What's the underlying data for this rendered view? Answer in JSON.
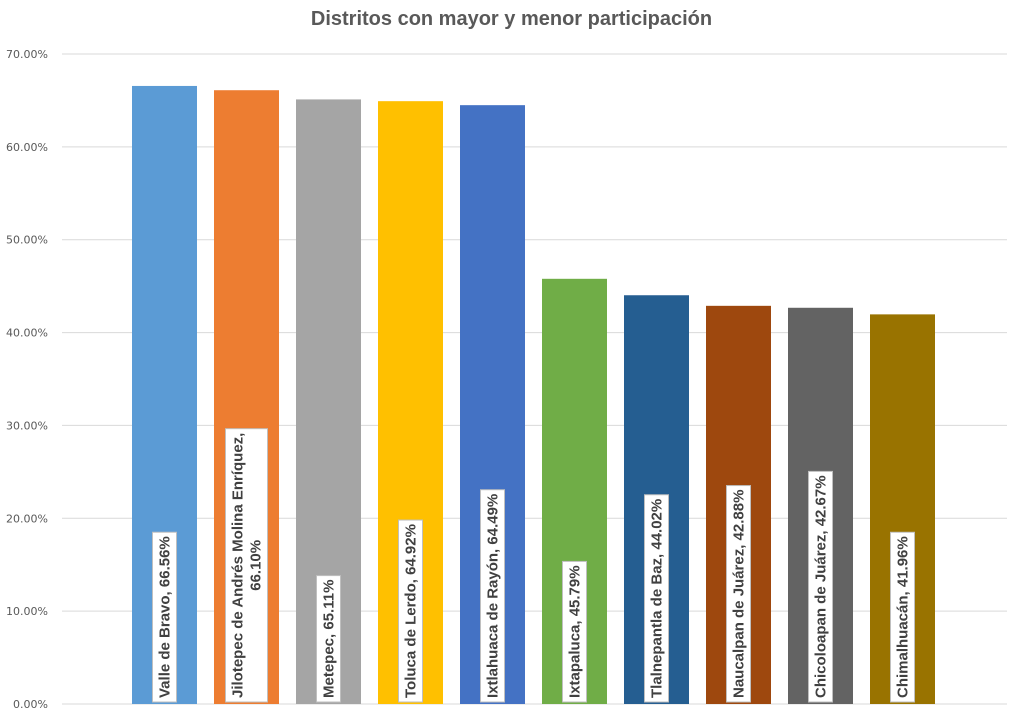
{
  "chart_data": {
    "type": "bar",
    "title": "Distritos con mayor y menor participación",
    "xlabel": "",
    "ylabel": "",
    "ylim": [
      0,
      70
    ],
    "yticks": [
      "0.00%",
      "10.00%",
      "20.00%",
      "30.00%",
      "40.00%",
      "50.00%",
      "60.00%",
      "70.00%"
    ],
    "grid": true,
    "legend": "none",
    "categories": [
      "Valle de Bravo",
      "Jilotepec de Andrés Molina Enríquez",
      "Metepec",
      "Toluca de Lerdo",
      "Ixtlahuaca de Rayón",
      "Ixtapaluca",
      "Tlalnepantla de Baz",
      "Naucalpan de Juárez",
      "Chicoloapan de Juárez",
      "Chimalhuacán"
    ],
    "values": [
      66.56,
      66.1,
      65.11,
      64.92,
      64.49,
      45.79,
      44.02,
      42.88,
      42.67,
      41.96
    ],
    "data_labels": [
      [
        "Valle de Bravo, 66.56%"
      ],
      [
        "Jilotepec de Andrés Molina Enríquez,",
        "66.10%"
      ],
      [
        "Metepec, 65.11%"
      ],
      [
        "Toluca de Lerdo, 64.92%"
      ],
      [
        "Ixtlahuaca de Rayón, 64.49%"
      ],
      [
        "Ixtapaluca, 45.79%"
      ],
      [
        "Tlalnepantla de Baz, 44.02%"
      ],
      [
        "Naucalpan de Juárez, 42.88%"
      ],
      [
        "Chicoloapan de Juárez, 42.67%"
      ],
      [
        "Chimalhuacán, 41.96%"
      ]
    ],
    "colors": [
      "#5b9bd5",
      "#ed7d31",
      "#a5a5a5",
      "#ffc000",
      "#4472c4",
      "#70ad47",
      "#255e91",
      "#9e480e",
      "#636363",
      "#997300"
    ]
  }
}
